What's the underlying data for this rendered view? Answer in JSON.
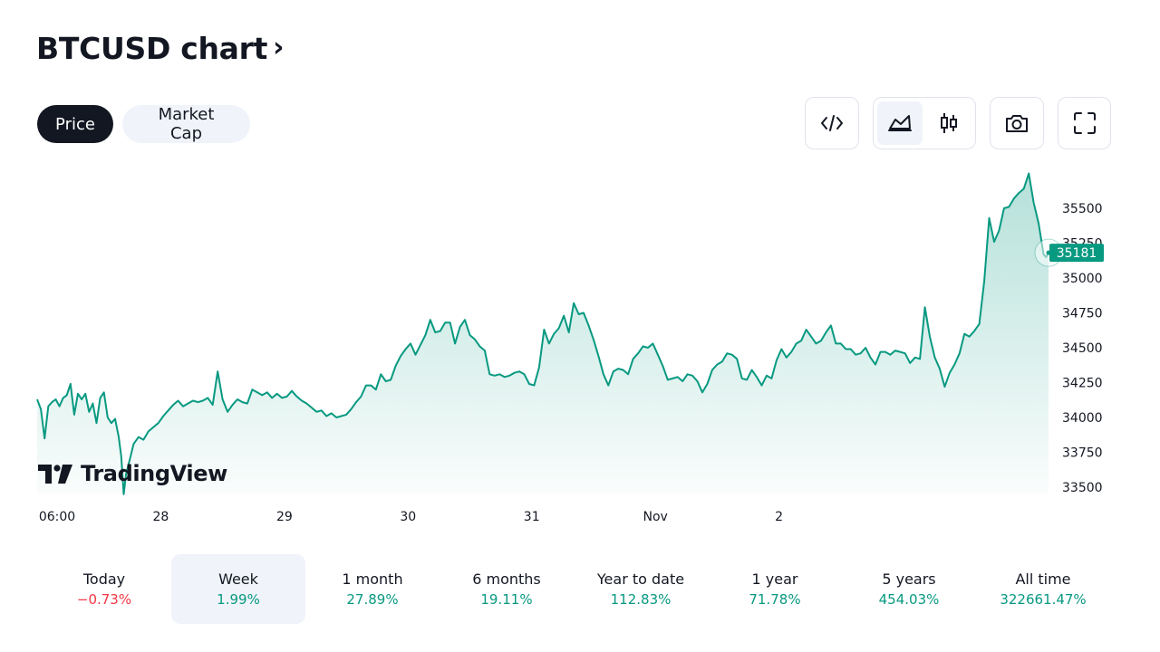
{
  "header": {
    "title": "BTCUSD chart",
    "chevron": "›"
  },
  "toggles": {
    "price": "Price",
    "market_cap": "Market Cap"
  },
  "toolbar": {
    "icons": [
      "code-embed-icon",
      "area-chart-icon",
      "candlestick-icon",
      "camera-icon",
      "fullscreen-icon"
    ],
    "selected": "area-chart-icon"
  },
  "branding": {
    "logo_text": "TradingView"
  },
  "colors": {
    "line": "#089981",
    "negative": "#f23645",
    "positive": "#089981",
    "text": "#131722",
    "selected_bg": "#f0f3fa"
  },
  "chart_data": {
    "type": "area",
    "title": "",
    "xlabel": "",
    "ylabel": "",
    "x_ticks": [
      "06:00",
      "28",
      "29",
      "30",
      "31",
      "Nov",
      "2"
    ],
    "y_ticks": [
      33500,
      33750,
      34000,
      34250,
      34500,
      34750,
      35000,
      35250,
      35500
    ],
    "ylim": [
      33470,
      35800
    ],
    "last_value_label": "35181",
    "grid": false,
    "series": [
      {
        "points": [
          [
            0,
            34130
          ],
          [
            0.03,
            34060
          ],
          [
            0.06,
            33850
          ],
          [
            0.09,
            34080
          ],
          [
            0.12,
            34110
          ],
          [
            0.15,
            34130
          ],
          [
            0.18,
            34080
          ],
          [
            0.21,
            34140
          ],
          [
            0.24,
            34160
          ],
          [
            0.27,
            34240
          ],
          [
            0.3,
            34020
          ],
          [
            0.33,
            34170
          ],
          [
            0.36,
            34130
          ],
          [
            0.39,
            34170
          ],
          [
            0.42,
            34040
          ],
          [
            0.45,
            34100
          ],
          [
            0.48,
            33960
          ],
          [
            0.51,
            34140
          ],
          [
            0.54,
            34180
          ],
          [
            0.57,
            34000
          ],
          [
            0.6,
            33960
          ],
          [
            0.63,
            33990
          ],
          [
            0.66,
            33860
          ],
          [
            0.68,
            33720
          ],
          [
            0.7,
            33450
          ],
          [
            0.72,
            33600
          ],
          [
            0.75,
            33700
          ],
          [
            0.78,
            33810
          ],
          [
            0.82,
            33860
          ],
          [
            0.86,
            33840
          ],
          [
            0.9,
            33900
          ],
          [
            0.94,
            33930
          ],
          [
            0.98,
            33960
          ],
          [
            1.02,
            34010
          ],
          [
            1.06,
            34050
          ],
          [
            1.1,
            34090
          ],
          [
            1.14,
            34120
          ],
          [
            1.18,
            34080
          ],
          [
            1.22,
            34100
          ],
          [
            1.26,
            34120
          ],
          [
            1.3,
            34110
          ],
          [
            1.34,
            34120
          ],
          [
            1.38,
            34140
          ],
          [
            1.42,
            34090
          ],
          [
            1.46,
            34330
          ],
          [
            1.5,
            34130
          ],
          [
            1.54,
            34040
          ],
          [
            1.58,
            34090
          ],
          [
            1.62,
            34130
          ],
          [
            1.66,
            34110
          ],
          [
            1.7,
            34100
          ],
          [
            1.74,
            34200
          ],
          [
            1.78,
            34180
          ],
          [
            1.82,
            34160
          ],
          [
            1.86,
            34180
          ],
          [
            1.9,
            34140
          ],
          [
            1.94,
            34170
          ],
          [
            1.98,
            34140
          ],
          [
            2.02,
            34150
          ],
          [
            2.06,
            34190
          ],
          [
            2.1,
            34150
          ],
          [
            2.14,
            34120
          ],
          [
            2.18,
            34100
          ],
          [
            2.22,
            34070
          ],
          [
            2.26,
            34040
          ],
          [
            2.3,
            34050
          ],
          [
            2.34,
            34010
          ],
          [
            2.38,
            34030
          ],
          [
            2.42,
            34000
          ],
          [
            2.46,
            34010
          ],
          [
            2.5,
            34020
          ],
          [
            2.54,
            34060
          ],
          [
            2.58,
            34110
          ],
          [
            2.62,
            34150
          ],
          [
            2.66,
            34230
          ],
          [
            2.7,
            34230
          ],
          [
            2.74,
            34200
          ],
          [
            2.78,
            34310
          ],
          [
            2.82,
            34260
          ],
          [
            2.86,
            34270
          ],
          [
            2.9,
            34370
          ],
          [
            2.94,
            34440
          ],
          [
            2.98,
            34490
          ],
          [
            3.02,
            34530
          ],
          [
            3.06,
            34450
          ],
          [
            3.1,
            34520
          ],
          [
            3.14,
            34590
          ],
          [
            3.18,
            34700
          ],
          [
            3.22,
            34610
          ],
          [
            3.26,
            34620
          ],
          [
            3.3,
            34680
          ],
          [
            3.34,
            34680
          ],
          [
            3.38,
            34530
          ],
          [
            3.42,
            34650
          ],
          [
            3.46,
            34700
          ],
          [
            3.5,
            34590
          ],
          [
            3.54,
            34560
          ],
          [
            3.58,
            34510
          ],
          [
            3.62,
            34480
          ],
          [
            3.66,
            34310
          ],
          [
            3.7,
            34300
          ],
          [
            3.74,
            34310
          ],
          [
            3.78,
            34290
          ],
          [
            3.82,
            34300
          ],
          [
            3.86,
            34320
          ],
          [
            3.9,
            34330
          ],
          [
            3.94,
            34310
          ],
          [
            3.98,
            34240
          ],
          [
            4.02,
            34230
          ],
          [
            4.06,
            34360
          ],
          [
            4.1,
            34630
          ],
          [
            4.14,
            34530
          ],
          [
            4.18,
            34600
          ],
          [
            4.22,
            34640
          ],
          [
            4.26,
            34730
          ],
          [
            4.3,
            34610
          ],
          [
            4.34,
            34820
          ],
          [
            4.38,
            34740
          ],
          [
            4.42,
            34750
          ],
          [
            4.46,
            34660
          ],
          [
            4.5,
            34560
          ],
          [
            4.54,
            34440
          ],
          [
            4.58,
            34310
          ],
          [
            4.62,
            34230
          ],
          [
            4.66,
            34330
          ],
          [
            4.7,
            34350
          ],
          [
            4.74,
            34340
          ],
          [
            4.78,
            34310
          ],
          [
            4.82,
            34420
          ],
          [
            4.86,
            34460
          ],
          [
            4.9,
            34510
          ],
          [
            4.94,
            34500
          ],
          [
            4.98,
            34530
          ],
          [
            5.02,
            34450
          ],
          [
            5.06,
            34370
          ],
          [
            5.1,
            34270
          ],
          [
            5.14,
            34280
          ],
          [
            5.18,
            34290
          ],
          [
            5.22,
            34260
          ],
          [
            5.26,
            34310
          ],
          [
            5.3,
            34300
          ],
          [
            5.34,
            34260
          ],
          [
            5.38,
            34180
          ],
          [
            5.42,
            34240
          ],
          [
            5.46,
            34340
          ],
          [
            5.5,
            34380
          ],
          [
            5.54,
            34400
          ],
          [
            5.58,
            34460
          ],
          [
            5.62,
            34450
          ],
          [
            5.66,
            34420
          ],
          [
            5.7,
            34280
          ],
          [
            5.74,
            34270
          ],
          [
            5.78,
            34340
          ],
          [
            5.82,
            34290
          ],
          [
            5.86,
            34230
          ],
          [
            5.9,
            34300
          ],
          [
            5.94,
            34280
          ],
          [
            5.98,
            34410
          ],
          [
            6.02,
            34490
          ],
          [
            6.06,
            34430
          ],
          [
            6.1,
            34470
          ],
          [
            6.14,
            34530
          ],
          [
            6.18,
            34550
          ],
          [
            6.22,
            34630
          ],
          [
            6.26,
            34580
          ],
          [
            6.3,
            34530
          ],
          [
            6.34,
            34550
          ],
          [
            6.38,
            34610
          ],
          [
            6.42,
            34660
          ],
          [
            6.46,
            34530
          ],
          [
            6.5,
            34530
          ],
          [
            6.54,
            34490
          ],
          [
            6.58,
            34490
          ],
          [
            6.62,
            34450
          ],
          [
            6.66,
            34460
          ],
          [
            6.7,
            34500
          ],
          [
            6.74,
            34430
          ],
          [
            6.78,
            34380
          ],
          [
            6.82,
            34470
          ],
          [
            6.86,
            34470
          ],
          [
            6.9,
            34450
          ],
          [
            6.94,
            34480
          ],
          [
            6.98,
            34470
          ],
          [
            7.02,
            34460
          ],
          [
            7.06,
            34390
          ],
          [
            7.1,
            34430
          ],
          [
            7.14,
            34420
          ],
          [
            7.18,
            34790
          ],
          [
            7.22,
            34580
          ],
          [
            7.26,
            34430
          ],
          [
            7.3,
            34350
          ],
          [
            7.34,
            34220
          ],
          [
            7.38,
            34320
          ],
          [
            7.42,
            34380
          ],
          [
            7.46,
            34460
          ],
          [
            7.5,
            34600
          ],
          [
            7.54,
            34580
          ],
          [
            7.58,
            34620
          ],
          [
            7.62,
            34670
          ],
          [
            7.66,
            34980
          ],
          [
            7.7,
            35430
          ],
          [
            7.74,
            35260
          ],
          [
            7.78,
            35340
          ],
          [
            7.82,
            35500
          ],
          [
            7.86,
            35510
          ],
          [
            7.9,
            35570
          ],
          [
            7.94,
            35610
          ],
          [
            7.98,
            35640
          ],
          [
            8.02,
            35750
          ],
          [
            8.06,
            35540
          ],
          [
            8.1,
            35390
          ],
          [
            8.14,
            35170
          ],
          [
            8.16,
            35150
          ],
          [
            8.18,
            35181
          ]
        ]
      }
    ]
  },
  "periods": [
    {
      "label": "Today",
      "value": "−0.73%",
      "sign": "negative"
    },
    {
      "label": "Week",
      "value": "1.99%",
      "sign": "positive",
      "selected": true
    },
    {
      "label": "1 month",
      "value": "27.89%",
      "sign": "positive"
    },
    {
      "label": "6 months",
      "value": "19.11%",
      "sign": "positive"
    },
    {
      "label": "Year to date",
      "value": "112.83%",
      "sign": "positive"
    },
    {
      "label": "1 year",
      "value": "71.78%",
      "sign": "positive"
    },
    {
      "label": "5 years",
      "value": "454.03%",
      "sign": "positive"
    },
    {
      "label": "All time",
      "value": "322661.47%",
      "sign": "positive"
    }
  ]
}
